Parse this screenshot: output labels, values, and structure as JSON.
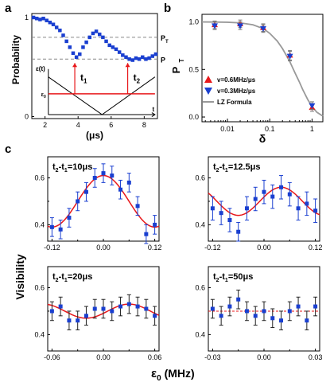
{
  "panel_labels": {
    "a": "a",
    "b": "b",
    "c": "c"
  },
  "colors": {
    "blue": "#1a3fd0",
    "red": "#e8181b",
    "gray": "#999999",
    "dash": "#888888"
  },
  "chart_data": [
    {
      "id": "a",
      "type": "scatter",
      "xlabel": "(μs)",
      "ylabel": "Probability",
      "xlim": [
        1.2,
        8.8
      ],
      "ylim": [
        -0.02,
        1.04
      ],
      "xticks": [
        "2",
        "4",
        "6",
        "8"
      ],
      "yticks": [
        "0",
        "1"
      ],
      "hlines": [
        {
          "y": 0.8,
          "label": "P",
          "sub": "T"
        },
        {
          "y": 0.58,
          "label": "P",
          "sub": ""
        }
      ],
      "inset": {
        "ylabel": "ε(t)",
        "eps_label": "ε",
        "eps_sub": "0",
        "t_label": "t",
        "t1": "t",
        "t1_sub": "1",
        "t2": "t",
        "t2_sub": "2",
        "t1_x": 3.8,
        "t2_x": 7.0,
        "eps_level": 0.23,
        "v_min_x": 5.45,
        "v_min_y": 0.02,
        "v_top_y": 0.4
      },
      "series": [
        {
          "points": [
            [
              1.3,
              1.0
            ],
            [
              1.5,
              0.99
            ],
            [
              1.7,
              0.98
            ],
            [
              1.9,
              0.99
            ],
            [
              2.1,
              0.97
            ],
            [
              2.3,
              0.95
            ],
            [
              2.5,
              0.93
            ],
            [
              2.7,
              0.9
            ],
            [
              2.9,
              0.87
            ],
            [
              3.1,
              0.82
            ],
            [
              3.3,
              0.76
            ],
            [
              3.5,
              0.7
            ],
            [
              3.7,
              0.64
            ],
            [
              3.9,
              0.6
            ],
            [
              4.1,
              0.63
            ],
            [
              4.3,
              0.7
            ],
            [
              4.5,
              0.75
            ],
            [
              4.7,
              0.8
            ],
            [
              4.9,
              0.84
            ],
            [
              5.1,
              0.86
            ],
            [
              5.3,
              0.83
            ],
            [
              5.5,
              0.8
            ],
            [
              5.7,
              0.76
            ],
            [
              5.9,
              0.72
            ],
            [
              6.1,
              0.7
            ],
            [
              6.3,
              0.68
            ],
            [
              6.5,
              0.65
            ],
            [
              6.7,
              0.62
            ],
            [
              6.9,
              0.6
            ],
            [
              7.1,
              0.58
            ],
            [
              7.3,
              0.57
            ],
            [
              7.5,
              0.59
            ],
            [
              7.7,
              0.58
            ],
            [
              7.9,
              0.6
            ],
            [
              8.1,
              0.58
            ],
            [
              8.3,
              0.59
            ],
            [
              8.5,
              0.61
            ],
            [
              8.7,
              0.63
            ]
          ]
        }
      ]
    },
    {
      "id": "b",
      "type": "scatter",
      "xlabel": "δ",
      "ylabel": "P",
      "ylabel_sub": "T",
      "xscale": "log",
      "xlim": [
        0.0025,
        1.8
      ],
      "ylim": [
        -0.05,
        1.08
      ],
      "xticks": [
        "0.01",
        "0.1",
        "1"
      ],
      "yticks": [
        "0.0",
        "0.5",
        "1.0"
      ],
      "legend": [
        "v=0.6MHz/μs",
        "v=0.3MHz/μs",
        "LZ Formula"
      ],
      "legend_position": "bottom-left",
      "lz_curve": [
        [
          0.0025,
          1.0
        ],
        [
          0.005,
          0.999
        ],
        [
          0.01,
          0.997
        ],
        [
          0.02,
          0.99
        ],
        [
          0.04,
          0.97
        ],
        [
          0.07,
          0.93
        ],
        [
          0.1,
          0.88
        ],
        [
          0.15,
          0.8
        ],
        [
          0.2,
          0.72
        ],
        [
          0.3,
          0.58
        ],
        [
          0.4,
          0.46
        ],
        [
          0.5,
          0.37
        ],
        [
          0.6,
          0.29
        ],
        [
          0.8,
          0.18
        ],
        [
          1.0,
          0.11
        ],
        [
          1.3,
          0.05
        ],
        [
          1.8,
          0.01
        ]
      ],
      "series": [
        {
          "name": "v=0.6MHz/μs",
          "marker": "triangle-up",
          "points": [
            [
              0.005,
              0.97,
              0.04
            ],
            [
              0.02,
              0.98,
              0.04
            ],
            [
              0.07,
              0.94,
              0.04
            ],
            [
              0.3,
              0.65,
              0.05
            ],
            [
              1.0,
              0.1,
              0.04
            ]
          ]
        },
        {
          "name": "v=0.3MHz/μs",
          "marker": "triangle-down",
          "points": [
            [
              0.005,
              0.96,
              0.04
            ],
            [
              0.02,
              0.96,
              0.04
            ],
            [
              0.07,
              0.93,
              0.04
            ],
            [
              0.3,
              0.64,
              0.05
            ],
            [
              1.0,
              0.12,
              0.04
            ]
          ]
        }
      ]
    },
    {
      "id": "c1",
      "type": "scatter",
      "title": "t",
      "title_sub1": "2",
      "title_mid": "-t",
      "title_sub2": "1",
      "title_rest": "=10μs",
      "xlim": [
        -0.13,
        0.13
      ],
      "ylim": [
        0.33,
        0.69
      ],
      "xticks": [
        "-0.12",
        "0.00",
        "0.12"
      ],
      "yticks": [
        "0.4",
        "0.6"
      ],
      "fit": {
        "mean": 0.5,
        "amp": 0.11,
        "period": 0.24,
        "phase": 0.0
      },
      "points": [
        [
          -0.12,
          0.39,
          0.04
        ],
        [
          -0.1,
          0.38,
          0.04
        ],
        [
          -0.08,
          0.43,
          0.04
        ],
        [
          -0.06,
          0.5,
          0.04
        ],
        [
          -0.04,
          0.54,
          0.04
        ],
        [
          -0.02,
          0.6,
          0.04
        ],
        [
          0.0,
          0.62,
          0.04
        ],
        [
          0.02,
          0.61,
          0.04
        ],
        [
          0.04,
          0.55,
          0.04
        ],
        [
          0.06,
          0.58,
          0.04
        ],
        [
          0.08,
          0.48,
          0.04
        ],
        [
          0.1,
          0.36,
          0.04
        ],
        [
          0.12,
          0.4,
          0.04
        ]
      ]
    },
    {
      "id": "c2",
      "type": "scatter",
      "title": "t",
      "title_sub1": "2",
      "title_mid": "-t",
      "title_sub2": "1",
      "title_rest": "=12.5μs",
      "xlim": [
        -0.13,
        0.13
      ],
      "ylim": [
        0.33,
        0.69
      ],
      "xticks": [
        "-0.12",
        "0.00",
        "0.12"
      ],
      "yticks": [
        "0.4",
        "0.6"
      ],
      "fit": {
        "mean": 0.5,
        "amp": 0.06,
        "period": 0.2,
        "phase": 0.04
      },
      "points": [
        [
          -0.12,
          0.47,
          0.05
        ],
        [
          -0.1,
          0.45,
          0.05
        ],
        [
          -0.08,
          0.42,
          0.05
        ],
        [
          -0.06,
          0.37,
          0.04
        ],
        [
          -0.04,
          0.47,
          0.05
        ],
        [
          -0.02,
          0.51,
          0.05
        ],
        [
          0.0,
          0.54,
          0.05
        ],
        [
          0.02,
          0.52,
          0.05
        ],
        [
          0.04,
          0.56,
          0.05
        ],
        [
          0.06,
          0.53,
          0.05
        ],
        [
          0.08,
          0.47,
          0.05
        ],
        [
          0.1,
          0.49,
          0.05
        ],
        [
          0.12,
          0.46,
          0.05
        ]
      ]
    },
    {
      "id": "c3",
      "type": "scatter",
      "title": "t",
      "title_sub1": "2",
      "title_mid": "-t",
      "title_sub2": "1",
      "title_rest": "=20μs",
      "xlabel": "",
      "xlim": [
        -0.065,
        0.065
      ],
      "ylim": [
        0.33,
        0.69
      ],
      "xticks": [
        "-0.06",
        "0.00",
        "0.06"
      ],
      "yticks": [
        "0.4",
        "0.6"
      ],
      "fit": {
        "mean": 0.5,
        "amp": 0.03,
        "period": 0.1,
        "phase": 0.03
      },
      "points": [
        [
          -0.06,
          0.5,
          0.04
        ],
        [
          -0.05,
          0.52,
          0.04
        ],
        [
          -0.04,
          0.46,
          0.04
        ],
        [
          -0.03,
          0.46,
          0.04
        ],
        [
          -0.02,
          0.48,
          0.04
        ],
        [
          -0.01,
          0.51,
          0.04
        ],
        [
          0.0,
          0.51,
          0.04
        ],
        [
          0.01,
          0.5,
          0.04
        ],
        [
          0.02,
          0.52,
          0.04
        ],
        [
          0.03,
          0.53,
          0.04
        ],
        [
          0.04,
          0.52,
          0.04
        ],
        [
          0.05,
          0.51,
          0.04
        ],
        [
          0.06,
          0.48,
          0.04
        ]
      ]
    },
    {
      "id": "c4",
      "type": "scatter",
      "title": "t",
      "title_sub1": "2",
      "title_mid": "-t",
      "title_sub2": "1",
      "title_rest": "=50μs",
      "xlim": [
        -0.0325,
        0.0325
      ],
      "ylim": [
        0.33,
        0.69
      ],
      "xticks": [
        "-0.03",
        "0.00",
        "0.03"
      ],
      "yticks": [
        "0.4",
        "0.6"
      ],
      "fit": {
        "mean": 0.5,
        "amp": 0.0,
        "period": 0.05,
        "phase": 0.0
      },
      "points": [
        [
          -0.03,
          0.51,
          0.04
        ],
        [
          -0.025,
          0.48,
          0.04
        ],
        [
          -0.02,
          0.52,
          0.04
        ],
        [
          -0.015,
          0.55,
          0.04
        ],
        [
          -0.01,
          0.5,
          0.04
        ],
        [
          -0.005,
          0.48,
          0.04
        ],
        [
          0.0,
          0.5,
          0.04
        ],
        [
          0.005,
          0.47,
          0.04
        ],
        [
          0.01,
          0.46,
          0.04
        ],
        [
          0.015,
          0.5,
          0.04
        ],
        [
          0.02,
          0.52,
          0.04
        ],
        [
          0.025,
          0.46,
          0.04
        ],
        [
          0.03,
          0.52,
          0.04
        ]
      ]
    }
  ],
  "shared_labels": {
    "c_ylabel": "Visibility",
    "c_xlabel": "ε",
    "c_xlabel_sub": "0",
    "c_xlabel_unit": " (MHz)"
  }
}
